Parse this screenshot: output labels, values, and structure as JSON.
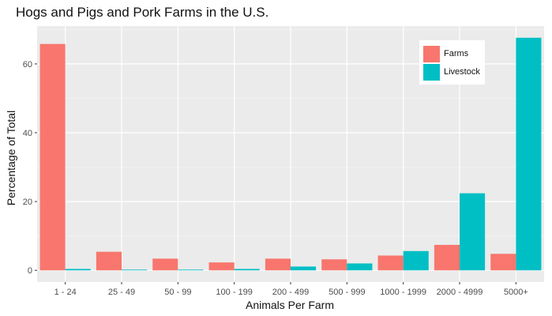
{
  "chart_data": {
    "type": "bar",
    "title": "Hogs and Pigs and Pork Farms in the U.S.",
    "xlabel": "Animals Per Farm",
    "ylabel": "Percentage of Total",
    "categories": [
      "1 - 24",
      "25 - 49",
      "50 - 99",
      "100 - 199",
      "200 - 499",
      "500 - 999",
      "1000 - 1999",
      "2000 - 4999",
      "5000+"
    ],
    "series": [
      {
        "name": "Farms",
        "color": "#F8766D",
        "values": [
          65.8,
          5.4,
          3.4,
          2.3,
          3.4,
          3.2,
          4.3,
          7.4,
          4.8
        ]
      },
      {
        "name": "Livestock",
        "color": "#00BFC4",
        "values": [
          0.4,
          0.2,
          0.2,
          0.4,
          1.1,
          2.0,
          5.6,
          22.4,
          67.6
        ]
      }
    ],
    "yticks": [
      0,
      20,
      40,
      60
    ],
    "ylim": [
      -3.4,
      71
    ],
    "grid": true,
    "legend_position": "top-right"
  }
}
